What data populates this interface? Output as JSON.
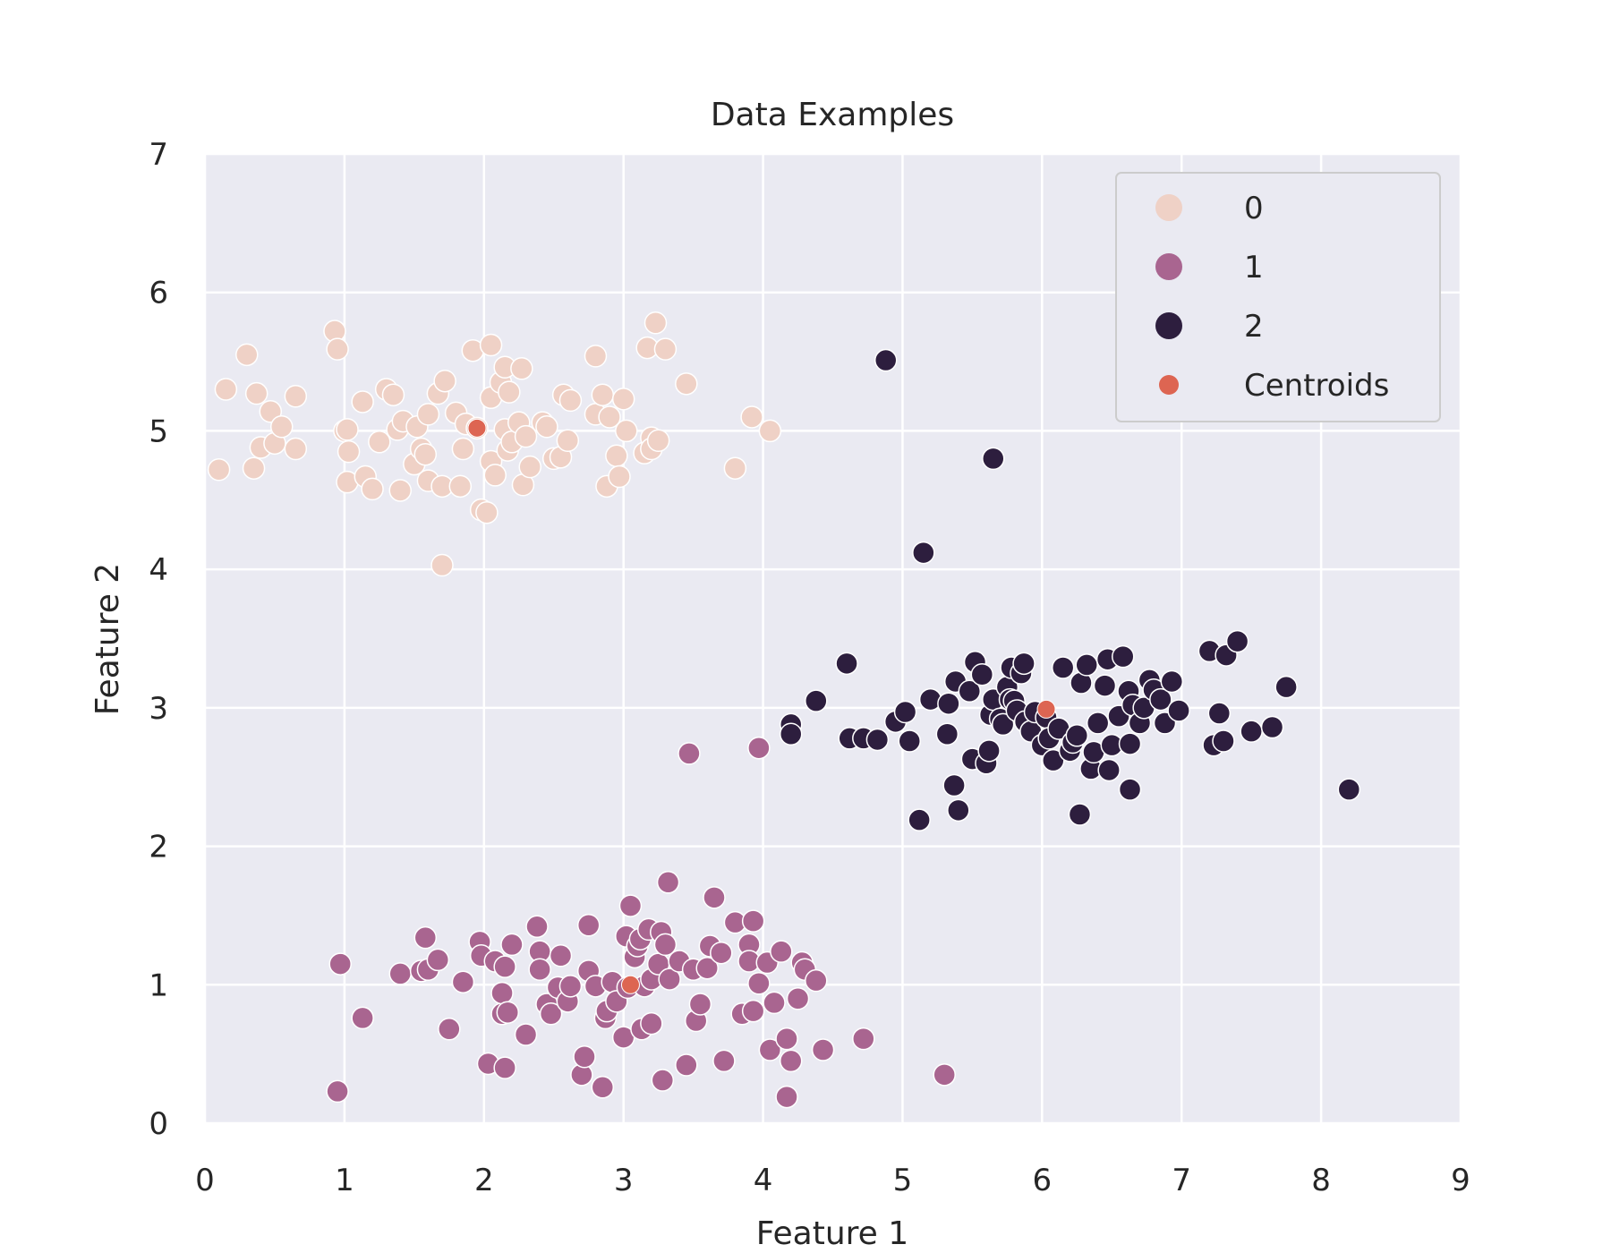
{
  "chart_data": {
    "type": "scatter",
    "title": "Data Examples",
    "xlabel": "Feature 1",
    "ylabel": "Feature 2",
    "xlim": [
      0,
      9
    ],
    "ylim": [
      0,
      7
    ],
    "xticks": [
      "0",
      "1",
      "2",
      "3",
      "4",
      "5",
      "6",
      "7",
      "8",
      "9"
    ],
    "yticks": [
      "0",
      "1",
      "2",
      "3",
      "4",
      "5",
      "6",
      "7"
    ],
    "grid": true,
    "background": "#eaeaf2",
    "legend_position": "top-right",
    "series": [
      {
        "name": "0",
        "color": "#efd1c6",
        "points": [
          [
            0.1,
            4.72
          ],
          [
            0.15,
            5.3
          ],
          [
            0.3,
            5.55
          ],
          [
            0.35,
            4.73
          ],
          [
            0.37,
            5.27
          ],
          [
            0.4,
            4.88
          ],
          [
            0.47,
            5.14
          ],
          [
            0.5,
            4.91
          ],
          [
            0.55,
            5.03
          ],
          [
            0.65,
            5.25
          ],
          [
            0.65,
            4.87
          ],
          [
            0.93,
            5.72
          ],
          [
            0.95,
            5.59
          ],
          [
            1.0,
            5.0
          ],
          [
            1.02,
            5.01
          ],
          [
            1.02,
            4.63
          ],
          [
            1.03,
            4.85
          ],
          [
            1.13,
            5.21
          ],
          [
            1.15,
            4.67
          ],
          [
            1.2,
            4.58
          ],
          [
            1.25,
            4.92
          ],
          [
            1.3,
            5.3
          ],
          [
            1.35,
            5.26
          ],
          [
            1.38,
            5.01
          ],
          [
            1.4,
            4.57
          ],
          [
            1.42,
            5.07
          ],
          [
            1.5,
            4.76
          ],
          [
            1.52,
            5.03
          ],
          [
            1.55,
            4.87
          ],
          [
            1.58,
            4.83
          ],
          [
            1.6,
            5.12
          ],
          [
            1.6,
            4.64
          ],
          [
            1.67,
            5.27
          ],
          [
            1.7,
            4.6
          ],
          [
            1.72,
            5.36
          ],
          [
            1.8,
            5.13
          ],
          [
            1.83,
            4.6
          ],
          [
            1.85,
            4.87
          ],
          [
            1.87,
            5.05
          ],
          [
            1.92,
            5.58
          ],
          [
            1.95,
            5.02
          ],
          [
            1.98,
            4.43
          ],
          [
            2.02,
            4.41
          ],
          [
            2.05,
            5.62
          ],
          [
            2.05,
            5.24
          ],
          [
            2.05,
            4.78
          ],
          [
            2.08,
            4.68
          ],
          [
            2.12,
            5.35
          ],
          [
            2.15,
            5.01
          ],
          [
            2.15,
            5.46
          ],
          [
            2.17,
            4.86
          ],
          [
            2.18,
            5.28
          ],
          [
            2.2,
            4.92
          ],
          [
            2.25,
            5.06
          ],
          [
            2.27,
            5.45
          ],
          [
            2.28,
            4.61
          ],
          [
            2.3,
            4.96
          ],
          [
            2.33,
            4.74
          ],
          [
            2.42,
            5.06
          ],
          [
            2.45,
            5.03
          ],
          [
            2.5,
            4.8
          ],
          [
            2.55,
            4.81
          ],
          [
            2.57,
            5.26
          ],
          [
            2.6,
            4.93
          ],
          [
            2.62,
            5.22
          ],
          [
            2.8,
            5.54
          ],
          [
            2.8,
            5.12
          ],
          [
            2.85,
            5.26
          ],
          [
            2.88,
            4.6
          ],
          [
            2.9,
            5.1
          ],
          [
            2.95,
            4.82
          ],
          [
            2.97,
            4.67
          ],
          [
            3.0,
            5.23
          ],
          [
            3.02,
            5.0
          ],
          [
            3.15,
            4.84
          ],
          [
            3.17,
            5.6
          ],
          [
            3.2,
            4.95
          ],
          [
            3.2,
            4.87
          ],
          [
            3.23,
            5.78
          ],
          [
            3.25,
            4.93
          ],
          [
            3.3,
            5.59
          ],
          [
            3.45,
            5.34
          ],
          [
            3.8,
            4.73
          ],
          [
            3.92,
            5.1
          ],
          [
            4.05,
            5.0
          ],
          [
            1.7,
            4.03
          ]
        ]
      },
      {
        "name": "1",
        "color": "#a96590",
        "points": [
          [
            0.95,
            0.23
          ],
          [
            0.97,
            1.15
          ],
          [
            1.13,
            0.76
          ],
          [
            1.4,
            1.08
          ],
          [
            1.55,
            1.1
          ],
          [
            1.58,
            1.34
          ],
          [
            1.6,
            1.11
          ],
          [
            1.67,
            1.18
          ],
          [
            1.75,
            0.68
          ],
          [
            1.85,
            1.02
          ],
          [
            1.97,
            1.31
          ],
          [
            1.98,
            1.21
          ],
          [
            2.03,
            0.43
          ],
          [
            2.08,
            1.17
          ],
          [
            2.13,
            0.79
          ],
          [
            2.13,
            0.94
          ],
          [
            2.15,
            1.13
          ],
          [
            2.15,
            0.4
          ],
          [
            2.17,
            0.8
          ],
          [
            2.2,
            1.29
          ],
          [
            2.3,
            0.64
          ],
          [
            2.38,
            1.42
          ],
          [
            2.4,
            1.24
          ],
          [
            2.4,
            1.11
          ],
          [
            2.45,
            0.86
          ],
          [
            2.48,
            0.79
          ],
          [
            2.53,
            0.98
          ],
          [
            2.55,
            1.21
          ],
          [
            2.6,
            0.88
          ],
          [
            2.62,
            0.99
          ],
          [
            2.7,
            0.35
          ],
          [
            2.72,
            0.48
          ],
          [
            2.75,
            1.1
          ],
          [
            2.75,
            1.43
          ],
          [
            2.8,
            0.99
          ],
          [
            2.85,
            0.26
          ],
          [
            2.87,
            0.76
          ],
          [
            2.88,
            0.81
          ],
          [
            2.92,
            1.02
          ],
          [
            2.95,
            0.88
          ],
          [
            3.0,
            0.62
          ],
          [
            3.02,
            1.35
          ],
          [
            3.03,
            0.98
          ],
          [
            3.05,
            1.57
          ],
          [
            3.08,
            1.2
          ],
          [
            3.1,
            1.28
          ],
          [
            3.12,
            1.33
          ],
          [
            3.13,
            0.68
          ],
          [
            3.15,
            0.99
          ],
          [
            3.18,
            1.4
          ],
          [
            3.2,
            1.04
          ],
          [
            3.2,
            0.72
          ],
          [
            3.25,
            1.15
          ],
          [
            3.27,
            1.38
          ],
          [
            3.28,
            0.31
          ],
          [
            3.3,
            1.29
          ],
          [
            3.32,
            1.74
          ],
          [
            3.33,
            1.04
          ],
          [
            3.4,
            1.17
          ],
          [
            3.45,
            0.42
          ],
          [
            3.47,
            2.67
          ],
          [
            3.5,
            1.11
          ],
          [
            3.52,
            0.74
          ],
          [
            3.55,
            0.86
          ],
          [
            3.6,
            1.12
          ],
          [
            3.62,
            1.28
          ],
          [
            3.65,
            1.63
          ],
          [
            3.7,
            1.23
          ],
          [
            3.72,
            0.45
          ],
          [
            3.8,
            1.45
          ],
          [
            3.85,
            0.79
          ],
          [
            3.9,
            1.29
          ],
          [
            3.9,
            1.17
          ],
          [
            3.93,
            1.46
          ],
          [
            3.93,
            0.81
          ],
          [
            3.97,
            2.71
          ],
          [
            3.97,
            1.01
          ],
          [
            4.03,
            1.16
          ],
          [
            4.05,
            0.53
          ],
          [
            4.08,
            0.87
          ],
          [
            4.13,
            1.24
          ],
          [
            4.17,
            0.61
          ],
          [
            4.17,
            0.19
          ],
          [
            4.2,
            0.45
          ],
          [
            4.25,
            0.9
          ],
          [
            4.28,
            1.16
          ],
          [
            4.3,
            1.11
          ],
          [
            4.38,
            1.03
          ],
          [
            4.43,
            0.53
          ],
          [
            4.72,
            0.61
          ],
          [
            5.3,
            0.35
          ]
        ]
      },
      {
        "name": "2",
        "color": "#2d1e3e",
        "points": [
          [
            4.2,
            2.88
          ],
          [
            4.2,
            2.81
          ],
          [
            4.38,
            3.05
          ],
          [
            4.6,
            3.32
          ],
          [
            4.62,
            2.78
          ],
          [
            4.72,
            2.78
          ],
          [
            4.82,
            2.77
          ],
          [
            4.88,
            5.51
          ],
          [
            4.95,
            2.9
          ],
          [
            5.02,
            2.97
          ],
          [
            5.05,
            2.76
          ],
          [
            5.12,
            2.19
          ],
          [
            5.15,
            4.12
          ],
          [
            5.2,
            3.06
          ],
          [
            5.32,
            2.81
          ],
          [
            5.33,
            3.03
          ],
          [
            5.37,
            2.44
          ],
          [
            5.38,
            3.19
          ],
          [
            5.4,
            2.26
          ],
          [
            5.48,
            3.12
          ],
          [
            5.5,
            2.63
          ],
          [
            5.52,
            3.33
          ],
          [
            5.57,
            3.24
          ],
          [
            5.6,
            2.6
          ],
          [
            5.62,
            2.69
          ],
          [
            5.63,
            2.95
          ],
          [
            5.65,
            4.8
          ],
          [
            5.65,
            3.06
          ],
          [
            5.7,
            2.92
          ],
          [
            5.72,
            2.88
          ],
          [
            5.75,
            3.15
          ],
          [
            5.77,
            3.06
          ],
          [
            5.78,
            3.29
          ],
          [
            5.8,
            3.05
          ],
          [
            5.82,
            2.98
          ],
          [
            5.85,
            3.25
          ],
          [
            5.87,
            3.32
          ],
          [
            5.88,
            2.9
          ],
          [
            5.92,
            2.83
          ],
          [
            5.95,
            2.97
          ],
          [
            6.0,
            2.73
          ],
          [
            6.03,
            2.93
          ],
          [
            6.05,
            2.78
          ],
          [
            6.08,
            2.62
          ],
          [
            6.12,
            2.85
          ],
          [
            6.15,
            3.29
          ],
          [
            6.2,
            2.69
          ],
          [
            6.22,
            2.75
          ],
          [
            6.25,
            2.8
          ],
          [
            6.27,
            2.23
          ],
          [
            6.28,
            3.18
          ],
          [
            6.32,
            3.31
          ],
          [
            6.35,
            2.56
          ],
          [
            6.37,
            2.68
          ],
          [
            6.4,
            2.89
          ],
          [
            6.45,
            3.16
          ],
          [
            6.47,
            3.35
          ],
          [
            6.48,
            2.55
          ],
          [
            6.5,
            2.73
          ],
          [
            6.55,
            2.94
          ],
          [
            6.58,
            3.37
          ],
          [
            6.62,
            3.12
          ],
          [
            6.63,
            2.41
          ],
          [
            6.63,
            2.74
          ],
          [
            6.65,
            3.02
          ],
          [
            6.7,
            2.89
          ],
          [
            6.73,
            3.0
          ],
          [
            6.77,
            3.2
          ],
          [
            6.8,
            3.13
          ],
          [
            6.85,
            3.06
          ],
          [
            6.88,
            2.89
          ],
          [
            6.93,
            3.19
          ],
          [
            6.98,
            2.98
          ],
          [
            7.2,
            3.41
          ],
          [
            7.23,
            2.73
          ],
          [
            7.27,
            2.96
          ],
          [
            7.3,
            2.76
          ],
          [
            7.32,
            3.38
          ],
          [
            7.4,
            3.48
          ],
          [
            7.5,
            2.83
          ],
          [
            7.65,
            2.86
          ],
          [
            7.75,
            3.15
          ],
          [
            8.2,
            2.41
          ]
        ]
      },
      {
        "name": "Centroids",
        "color": "#dd6552",
        "points": [
          [
            1.95,
            5.02
          ],
          [
            3.05,
            1.0
          ],
          [
            6.03,
            2.99
          ]
        ]
      }
    ]
  }
}
